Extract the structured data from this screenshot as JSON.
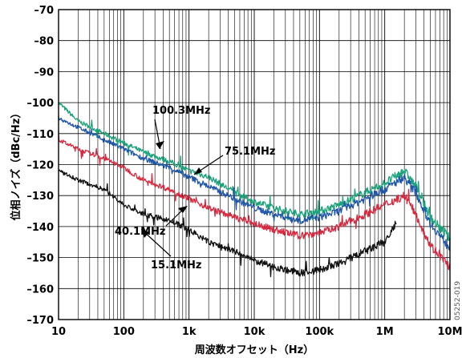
{
  "chart_data": {
    "type": "line",
    "title": "",
    "xlabel": "周波数オフセット（Hz）",
    "ylabel": "位相ノイズ（dBc/Hz）",
    "x_scale": "log",
    "xlim": [
      10,
      10000000
    ],
    "ylim": [
      -170,
      -70
    ],
    "grid": true,
    "x_ticks": [
      10,
      100,
      1000,
      10000,
      100000,
      1000000,
      10000000
    ],
    "x_tick_labels": [
      "10",
      "100",
      "1k",
      "10k",
      "100k",
      "1M",
      "10M"
    ],
    "y_ticks": [
      -70,
      -80,
      -90,
      -100,
      -110,
      -120,
      -130,
      -140,
      -150,
      -160,
      -170
    ],
    "y_tick_labels": [
      "–70",
      "–80",
      "–90",
      "–100",
      "–110",
      "–120",
      "–130",
      "–140",
      "–150",
      "–160",
      "–170"
    ],
    "figure_code": "05252-019",
    "series": [
      {
        "name": "100.3MHz",
        "color": "#1aa37a",
        "points": [
          [
            10,
            -100
          ],
          [
            20,
            -106
          ],
          [
            50,
            -110
          ],
          [
            100,
            -113
          ],
          [
            200,
            -116
          ],
          [
            500,
            -119
          ],
          [
            1000,
            -122
          ],
          [
            2000,
            -124
          ],
          [
            5000,
            -129
          ],
          [
            10000,
            -132
          ],
          [
            20000,
            -134
          ],
          [
            50000,
            -136
          ],
          [
            100000,
            -135
          ],
          [
            200000,
            -133
          ],
          [
            500000,
            -129
          ],
          [
            1000000,
            -126
          ],
          [
            2000000,
            -122
          ],
          [
            3000000,
            -127
          ],
          [
            5000000,
            -137
          ],
          [
            10000000,
            -144
          ]
        ]
      },
      {
        "name": "75.1MHz",
        "color": "#1f56a8",
        "points": [
          [
            10,
            -105
          ],
          [
            20,
            -108
          ],
          [
            50,
            -112
          ],
          [
            100,
            -115
          ],
          [
            200,
            -118
          ],
          [
            500,
            -121
          ],
          [
            1000,
            -124
          ],
          [
            2000,
            -127
          ],
          [
            5000,
            -131
          ],
          [
            10000,
            -134
          ],
          [
            20000,
            -136
          ],
          [
            50000,
            -138
          ],
          [
            100000,
            -137
          ],
          [
            200000,
            -135
          ],
          [
            500000,
            -131
          ],
          [
            1000000,
            -128
          ],
          [
            2000000,
            -124
          ],
          [
            3000000,
            -129
          ],
          [
            5000000,
            -139
          ],
          [
            10000000,
            -147
          ]
        ]
      },
      {
        "name": "40.1MHz",
        "color": "#d8283f",
        "points": [
          [
            10,
            -112
          ],
          [
            20,
            -115
          ],
          [
            50,
            -118
          ],
          [
            100,
            -121
          ],
          [
            200,
            -125
          ],
          [
            500,
            -128
          ],
          [
            1000,
            -131
          ],
          [
            2000,
            -134
          ],
          [
            5000,
            -137
          ],
          [
            10000,
            -139
          ],
          [
            20000,
            -141
          ],
          [
            50000,
            -143
          ],
          [
            100000,
            -142
          ],
          [
            200000,
            -140
          ],
          [
            500000,
            -136
          ],
          [
            1000000,
            -133
          ],
          [
            2000000,
            -130
          ],
          [
            3000000,
            -136
          ],
          [
            5000000,
            -146
          ],
          [
            10000000,
            -153
          ]
        ]
      },
      {
        "name": "15.1MHz",
        "color": "#111111",
        "points": [
          [
            10,
            -122
          ],
          [
            20,
            -125
          ],
          [
            50,
            -128
          ],
          [
            100,
            -133
          ],
          [
            200,
            -136
          ],
          [
            500,
            -138
          ],
          [
            1000,
            -141
          ],
          [
            2000,
            -145
          ],
          [
            5000,
            -148
          ],
          [
            10000,
            -151
          ],
          [
            20000,
            -153
          ],
          [
            50000,
            -155
          ],
          [
            100000,
            -154
          ],
          [
            200000,
            -152
          ],
          [
            500000,
            -148
          ],
          [
            1000000,
            -145
          ],
          [
            1500000,
            -139
          ]
        ]
      }
    ]
  }
}
